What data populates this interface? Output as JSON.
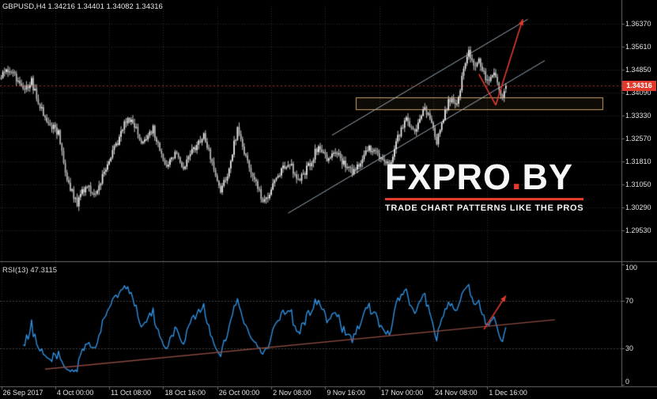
{
  "header": {
    "symbol_line": "GBPUSD,H4 1.34216 1.34401 1.34082 1.34316"
  },
  "indicator": {
    "label": "RSI(13) 47.3115",
    "value": 47.3115
  },
  "price_tag": "1.34316",
  "watermark": {
    "brand": "FXPRO",
    "dot": ".",
    "tld": "BY",
    "tagline": "TRADE CHART PATTERNS LIKE THE PROS",
    "accent": "#e23b2e"
  },
  "colors": {
    "background": "#000000",
    "candle_bull": "#efefef",
    "candle_bear": "#b5b5b5",
    "wick": "#c6c6c6",
    "grid": "#2e2e2e",
    "separator": "#6a6a6a",
    "channel": "#aabecd",
    "zone": "#c9a063",
    "arrow": "#e23b2e",
    "rsi_line": "#2f90e0",
    "rsi_trendline": "#8d4a42"
  },
  "chart_data": [
    {
      "type": "candlestick",
      "title": "GBPUSD,H4",
      "symbol": "GBPUSD",
      "timeframe": "H4",
      "ohlc_quote": {
        "open": 1.34216,
        "high": 1.34401,
        "low": 1.34082,
        "close": 1.34316
      },
      "current_price": 1.34316,
      "y_ticks": [
        "1.36370",
        "1.35610",
        "1.34850",
        "1.34090",
        "1.33330",
        "1.32570",
        "1.31810",
        "1.31050",
        "1.30290",
        "1.29530"
      ],
      "x_ticks": [
        {
          "label": "26 Sep 2017",
          "bar": 0
        },
        {
          "label": "4 Oct 00:00",
          "bar": 32
        },
        {
          "label": "11 Oct 08:00",
          "bar": 64
        },
        {
          "label": "18 Oct 16:00",
          "bar": 96
        },
        {
          "label": "26 Oct 00:00",
          "bar": 128
        },
        {
          "label": "2 Nov 08:00",
          "bar": 160
        },
        {
          "label": "9 Nov 16:00",
          "bar": 192
        },
        {
          "label": "17 Nov 00:00",
          "bar": 224
        },
        {
          "label": "24 Nov 08:00",
          "bar": 256
        },
        {
          "label": "1 Dec 16:00",
          "bar": 288
        }
      ],
      "bars_total": 300,
      "price_anchors": [
        [
          0,
          1.346
        ],
        [
          5,
          1.3487
        ],
        [
          10,
          1.345
        ],
        [
          14,
          1.3415
        ],
        [
          18,
          1.3445
        ],
        [
          24,
          1.335
        ],
        [
          30,
          1.33
        ],
        [
          34,
          1.3272
        ],
        [
          38,
          1.314
        ],
        [
          45,
          1.3038
        ],
        [
          50,
          1.3105
        ],
        [
          55,
          1.3075
        ],
        [
          62,
          1.315
        ],
        [
          68,
          1.3235
        ],
        [
          75,
          1.3335
        ],
        [
          80,
          1.3285
        ],
        [
          84,
          1.324
        ],
        [
          90,
          1.329
        ],
        [
          97,
          1.3165
        ],
        [
          103,
          1.3205
        ],
        [
          108,
          1.316
        ],
        [
          114,
          1.322
        ],
        [
          120,
          1.327
        ],
        [
          126,
          1.3155
        ],
        [
          130,
          1.3075
        ],
        [
          135,
          1.316
        ],
        [
          140,
          1.329
        ],
        [
          145,
          1.32
        ],
        [
          150,
          1.312
        ],
        [
          155,
          1.3048
        ],
        [
          160,
          1.3085
        ],
        [
          166,
          1.315
        ],
        [
          171,
          1.3175
        ],
        [
          176,
          1.3115
        ],
        [
          182,
          1.3165
        ],
        [
          188,
          1.3235
        ],
        [
          193,
          1.318
        ],
        [
          198,
          1.322
        ],
        [
          203,
          1.3175
        ],
        [
          208,
          1.314
        ],
        [
          213,
          1.3185
        ],
        [
          218,
          1.323
        ],
        [
          224,
          1.3195
        ],
        [
          230,
          1.3165
        ],
        [
          235,
          1.326
        ],
        [
          240,
          1.332
        ],
        [
          245,
          1.328
        ],
        [
          250,
          1.336
        ],
        [
          254,
          1.333
        ],
        [
          258,
          1.325
        ],
        [
          262,
          1.333
        ],
        [
          266,
          1.339
        ],
        [
          270,
          1.337
        ],
        [
          274,
          1.348
        ],
        [
          277,
          1.3548
        ],
        [
          280,
          1.3495
        ],
        [
          283,
          1.3525
        ],
        [
          286,
          1.347
        ],
        [
          289,
          1.3445
        ],
        [
          292,
          1.348
        ],
        [
          295,
          1.342
        ],
        [
          297,
          1.3385
        ],
        [
          299,
          1.34316
        ]
      ],
      "channel": {
        "lower": [
          [
            170,
            1.301
          ],
          [
            322,
            1.3515
          ]
        ],
        "upper": [
          [
            196,
            1.3268
          ],
          [
            312,
            1.3652
          ]
        ]
      },
      "support_zone": {
        "bar_start": 210,
        "bar_end": 356,
        "price_top": 1.3392,
        "price_bottom": 1.3353
      },
      "forecast_arrows": {
        "pullback": [
          [
            283,
            1.347
          ],
          [
            293,
            1.3368
          ]
        ],
        "projection": [
          [
            293,
            1.3368
          ],
          [
            309,
            1.3652
          ]
        ]
      }
    },
    {
      "type": "line",
      "name": "RSI(13)",
      "period": 13,
      "value": 47.3115,
      "range": [
        0,
        100
      ],
      "y_ticks": [
        100,
        70,
        30,
        0
      ],
      "levels": [
        70,
        30
      ],
      "trendline": {
        "from": [
          26,
          13
        ],
        "to": [
          328,
          54
        ]
      },
      "arrow": {
        "from": [
          286,
          46
        ],
        "to": [
          299,
          74
        ]
      }
    }
  ]
}
